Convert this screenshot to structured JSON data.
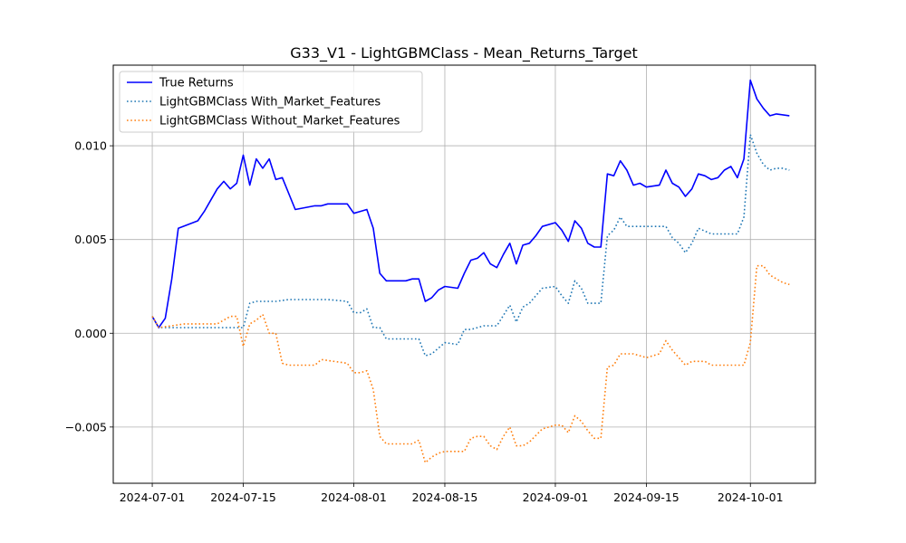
{
  "chart_data": {
    "type": "line",
    "title": "G33_V1 - LightGBMClass - Mean_Returns_Target",
    "xlabel": "",
    "ylabel": "",
    "grid": true,
    "legend_placement": "top-left",
    "x_ticks": [
      "2024-07-01",
      "2024-07-15",
      "2024-08-01",
      "2024-08-15",
      "2024-09-01",
      "2024-09-15",
      "2024-10-01"
    ],
    "y_ticks": [
      "0.000",
      "0.005",
      "0.010",
      "−0.005"
    ],
    "y_tick_values": [
      0.0,
      0.005,
      0.01,
      -0.005
    ],
    "xlim": [
      "2024-06-25",
      "2024-10-11"
    ],
    "ylim": [
      -0.008,
      0.0143
    ],
    "series": [
      {
        "name": "True Returns",
        "color": "#0000ff",
        "style": "solid",
        "x": [
          "2024-07-01",
          "2024-07-02",
          "2024-07-03",
          "2024-07-04",
          "2024-07-05",
          "2024-07-08",
          "2024-07-09",
          "2024-07-10",
          "2024-07-11",
          "2024-07-12",
          "2024-07-13",
          "2024-07-14",
          "2024-07-15",
          "2024-07-16",
          "2024-07-17",
          "2024-07-18",
          "2024-07-19",
          "2024-07-20",
          "2024-07-21",
          "2024-07-23",
          "2024-07-26",
          "2024-07-27",
          "2024-07-28",
          "2024-07-31",
          "2024-08-01",
          "2024-08-02",
          "2024-08-03",
          "2024-08-04",
          "2024-08-05",
          "2024-08-06",
          "2024-08-07",
          "2024-08-08",
          "2024-08-09",
          "2024-08-10",
          "2024-08-11",
          "2024-08-12",
          "2024-08-13",
          "2024-08-14",
          "2024-08-15",
          "2024-08-17",
          "2024-08-18",
          "2024-08-19",
          "2024-08-20",
          "2024-08-21",
          "2024-08-22",
          "2024-08-23",
          "2024-08-24",
          "2024-08-25",
          "2024-08-26",
          "2024-08-27",
          "2024-08-28",
          "2024-08-29",
          "2024-08-30",
          "2024-09-01",
          "2024-09-02",
          "2024-09-03",
          "2024-09-04",
          "2024-09-05",
          "2024-09-06",
          "2024-09-07",
          "2024-09-08",
          "2024-09-09",
          "2024-09-10",
          "2024-09-11",
          "2024-09-12",
          "2024-09-13",
          "2024-09-14",
          "2024-09-15",
          "2024-09-17",
          "2024-09-18",
          "2024-09-19",
          "2024-09-20",
          "2024-09-21",
          "2024-09-22",
          "2024-09-23",
          "2024-09-24",
          "2024-09-25",
          "2024-09-26",
          "2024-09-27",
          "2024-09-28",
          "2024-09-29",
          "2024-09-30",
          "2024-10-01",
          "2024-10-02",
          "2024-10-03",
          "2024-10-04",
          "2024-10-05",
          "2024-10-07"
        ],
        "y": [
          0.0009,
          0.0003,
          0.0008,
          0.0029,
          0.0056,
          0.006,
          0.0065,
          0.0071,
          0.0077,
          0.0081,
          0.0077,
          0.008,
          0.0095,
          0.0079,
          0.0093,
          0.0088,
          0.0093,
          0.0082,
          0.0083,
          0.0066,
          0.0068,
          0.0068,
          0.0069,
          0.0069,
          0.0064,
          0.0065,
          0.0066,
          0.0056,
          0.0032,
          0.0028,
          0.0028,
          0.0028,
          0.0028,
          0.0029,
          0.0029,
          0.0017,
          0.0019,
          0.0023,
          0.0025,
          0.0024,
          0.0032,
          0.0039,
          0.004,
          0.0043,
          0.0037,
          0.0035,
          0.0042,
          0.0048,
          0.0037,
          0.0047,
          0.0048,
          0.0052,
          0.0057,
          0.0059,
          0.0055,
          0.0049,
          0.006,
          0.0056,
          0.0048,
          0.0046,
          0.0046,
          0.0085,
          0.0084,
          0.0092,
          0.0087,
          0.0079,
          0.008,
          0.0078,
          0.0079,
          0.0087,
          0.008,
          0.0078,
          0.0073,
          0.0077,
          0.0085,
          0.0084,
          0.0082,
          0.0083,
          0.0087,
          0.0089,
          0.0083,
          0.0093,
          0.0135,
          0.0125,
          0.012,
          0.0116,
          0.0117,
          0.0116
        ]
      },
      {
        "name": "LightGBMClass With_Market_Features",
        "color": "#1f77b4",
        "style": "dotted",
        "x": [
          "2024-07-01",
          "2024-07-02",
          "2024-07-03",
          "2024-07-14",
          "2024-07-15",
          "2024-07-16",
          "2024-07-17",
          "2024-07-20",
          "2024-07-22",
          "2024-07-28",
          "2024-07-31",
          "2024-08-01",
          "2024-08-02",
          "2024-08-03",
          "2024-08-04",
          "2024-08-05",
          "2024-08-06",
          "2024-08-07",
          "2024-08-08",
          "2024-08-09",
          "2024-08-10",
          "2024-08-11",
          "2024-08-12",
          "2024-08-13",
          "2024-08-14",
          "2024-08-15",
          "2024-08-17",
          "2024-08-18",
          "2024-08-19",
          "2024-08-21",
          "2024-08-22",
          "2024-08-23",
          "2024-08-25",
          "2024-08-26",
          "2024-08-27",
          "2024-08-28",
          "2024-08-29",
          "2024-08-30",
          "2024-09-01",
          "2024-09-02",
          "2024-09-03",
          "2024-09-04",
          "2024-09-05",
          "2024-09-06",
          "2024-09-07",
          "2024-09-08",
          "2024-09-09",
          "2024-09-10",
          "2024-09-11",
          "2024-09-12",
          "2024-09-13",
          "2024-09-17",
          "2024-09-18",
          "2024-09-19",
          "2024-09-20",
          "2024-09-21",
          "2024-09-22",
          "2024-09-23",
          "2024-09-25",
          "2024-09-26",
          "2024-09-27",
          "2024-09-28",
          "2024-09-29",
          "2024-09-30",
          "2024-10-01",
          "2024-10-02",
          "2024-10-03",
          "2024-10-04",
          "2024-10-05",
          "2024-10-06",
          "2024-10-07"
        ],
        "y": [
          0.0009,
          0.0003,
          0.0003,
          0.0003,
          0.0003,
          0.0016,
          0.0017,
          0.0017,
          0.0018,
          0.0018,
          0.0017,
          0.0011,
          0.0011,
          0.0013,
          0.0003,
          0.0003,
          -0.0003,
          -0.0003,
          -0.0003,
          -0.0003,
          -0.0003,
          -0.0003,
          -0.0012,
          -0.0011,
          -0.0008,
          -0.0005,
          -0.0006,
          0.0002,
          0.0002,
          0.0004,
          0.0004,
          0.0004,
          0.0015,
          0.0006,
          0.0014,
          0.0016,
          0.002,
          0.0024,
          0.0025,
          0.002,
          0.0016,
          0.0028,
          0.0024,
          0.0016,
          0.0016,
          0.0016,
          0.0052,
          0.0055,
          0.0062,
          0.0057,
          0.0057,
          0.0057,
          0.0057,
          0.0051,
          0.0048,
          0.0043,
          0.0048,
          0.0056,
          0.0053,
          0.0053,
          0.0053,
          0.0053,
          0.0053,
          0.0062,
          0.0106,
          0.0096,
          0.009,
          0.0087,
          0.0088,
          0.0088,
          0.0087
        ]
      },
      {
        "name": "LightGBMClass Without_Market_Features",
        "color": "#ff7f0e",
        "style": "dotted",
        "x": [
          "2024-07-01",
          "2024-07-02",
          "2024-07-06",
          "2024-07-11",
          "2024-07-13",
          "2024-07-14",
          "2024-07-15",
          "2024-07-16",
          "2024-07-17",
          "2024-07-18",
          "2024-07-19",
          "2024-07-20",
          "2024-07-21",
          "2024-07-22",
          "2024-07-26",
          "2024-07-27",
          "2024-07-31",
          "2024-08-01",
          "2024-08-02",
          "2024-08-03",
          "2024-08-04",
          "2024-08-05",
          "2024-08-06",
          "2024-08-07",
          "2024-08-10",
          "2024-08-11",
          "2024-08-12",
          "2024-08-13",
          "2024-08-14",
          "2024-08-15",
          "2024-08-18",
          "2024-08-19",
          "2024-08-20",
          "2024-08-21",
          "2024-08-22",
          "2024-08-23",
          "2024-08-24",
          "2024-08-25",
          "2024-08-26",
          "2024-08-27",
          "2024-08-28",
          "2024-08-30",
          "2024-09-01",
          "2024-09-02",
          "2024-09-03",
          "2024-09-04",
          "2024-09-05",
          "2024-09-06",
          "2024-09-07",
          "2024-09-08",
          "2024-09-09",
          "2024-09-10",
          "2024-09-11",
          "2024-09-12",
          "2024-09-13",
          "2024-09-14",
          "2024-09-15",
          "2024-09-16",
          "2024-09-17",
          "2024-09-18",
          "2024-09-19",
          "2024-09-20",
          "2024-09-21",
          "2024-09-22",
          "2024-09-23",
          "2024-09-24",
          "2024-09-25",
          "2024-09-30",
          "2024-10-01",
          "2024-10-02",
          "2024-10-03",
          "2024-10-04",
          "2024-10-06",
          "2024-10-07"
        ],
        "y": [
          0.0009,
          0.0003,
          0.0005,
          0.0005,
          0.0009,
          0.0009,
          -0.0007,
          0.0005,
          0.0007,
          0.001,
          0.0,
          0.0,
          -0.0016,
          -0.0017,
          -0.0017,
          -0.0014,
          -0.0016,
          -0.0021,
          -0.0021,
          -0.002,
          -0.003,
          -0.0055,
          -0.0059,
          -0.0059,
          -0.0059,
          -0.0057,
          -0.0069,
          -0.0066,
          -0.0064,
          -0.0063,
          -0.0063,
          -0.0056,
          -0.0055,
          -0.0055,
          -0.006,
          -0.0062,
          -0.0055,
          -0.005,
          -0.006,
          -0.006,
          -0.0058,
          -0.0051,
          -0.0049,
          -0.0049,
          -0.0053,
          -0.0044,
          -0.0047,
          -0.0052,
          -0.0056,
          -0.0056,
          -0.0018,
          -0.0017,
          -0.0011,
          -0.0011,
          -0.0011,
          -0.0012,
          -0.0013,
          -0.0012,
          -0.0011,
          -0.0004,
          -0.0009,
          -0.0013,
          -0.0017,
          -0.0015,
          -0.0015,
          -0.0015,
          -0.0017,
          -0.0017,
          -0.0005,
          0.0036,
          0.0036,
          0.0031,
          0.0027,
          0.0026
        ]
      }
    ]
  }
}
